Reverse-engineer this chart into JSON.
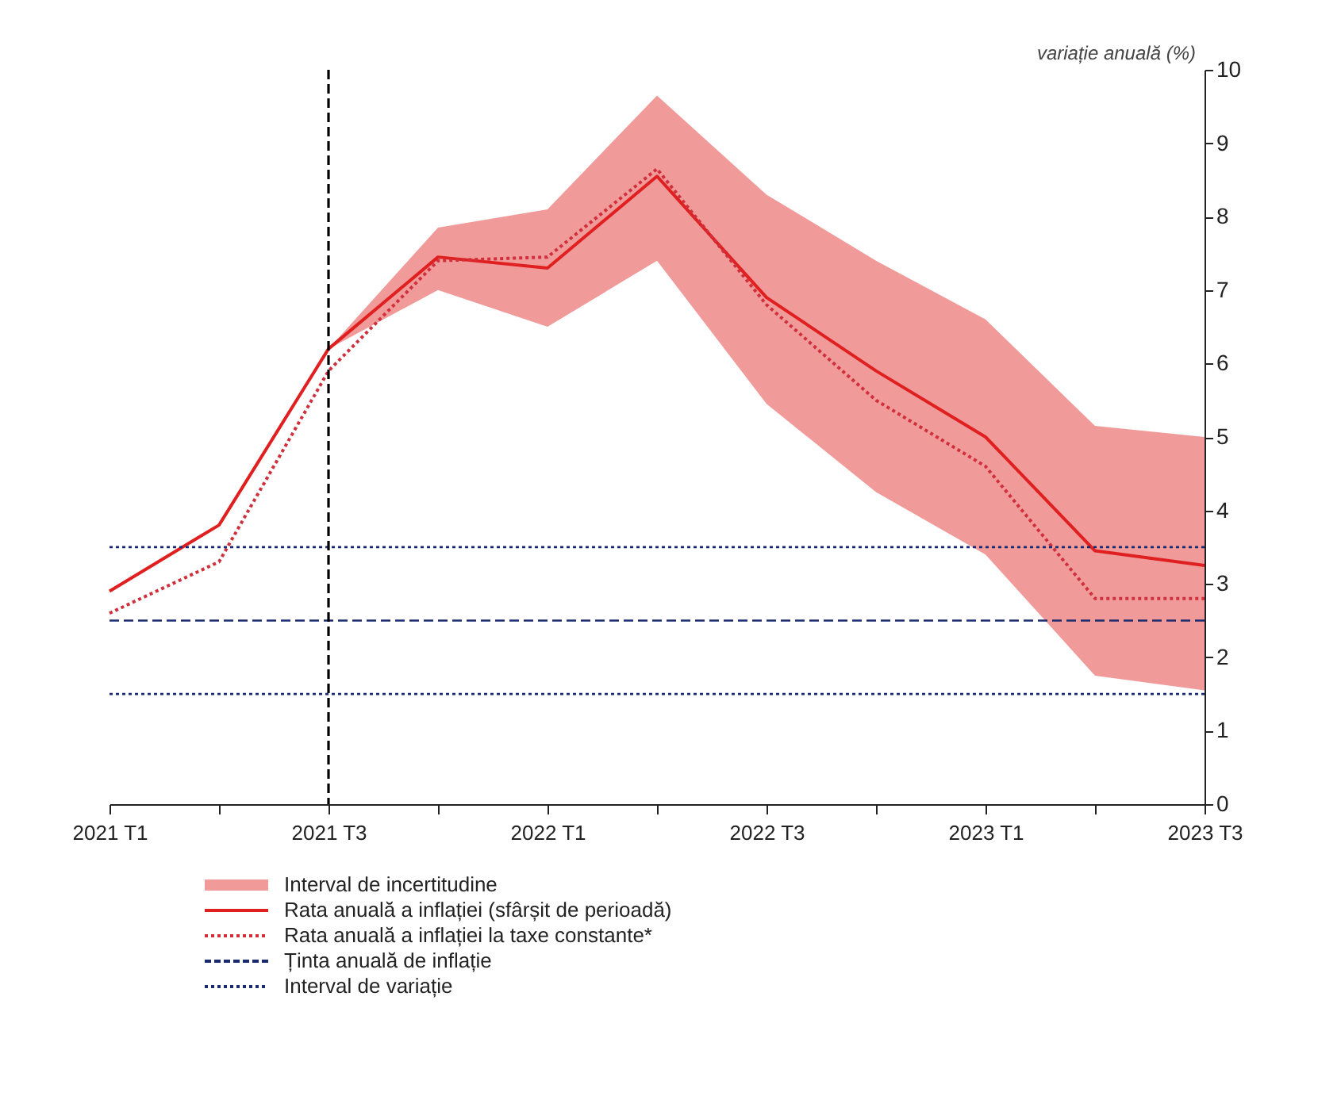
{
  "chart_data": {
    "type": "line",
    "ylabel": "variație anuală (%)",
    "categories": [
      "2021 T1",
      null,
      "2021 T3",
      null,
      "2022 T1",
      null,
      "2022 T3",
      null,
      "2023 T1",
      null,
      "2023 T3"
    ],
    "series": [
      {
        "name": "Rata anuală a inflației (sfârșit de perioadă)",
        "color": "#e02020",
        "line_style": "solid",
        "values": [
          2.9,
          3.8,
          6.2,
          7.45,
          7.3,
          8.55,
          6.9,
          5.9,
          5.0,
          3.45,
          3.25
        ],
        "lower": [
          null,
          null,
          6.2,
          7.0,
          6.5,
          7.4,
          5.45,
          4.25,
          3.4,
          1.75,
          1.55
        ],
        "upper": [
          null,
          null,
          6.2,
          7.85,
          8.1,
          9.65,
          8.3,
          7.4,
          6.6,
          5.15,
          5.0
        ]
      },
      {
        "name": "Rata anuală a inflației la taxe constante*",
        "color": "#d0303c",
        "line_style": "dotted",
        "values": [
          2.6,
          3.3,
          5.9,
          7.4,
          7.45,
          8.65,
          6.8,
          5.5,
          4.6,
          2.8,
          2.8
        ]
      }
    ],
    "annotations": [
      "Interval de incertitudine"
    ],
    "ref_lines": [
      {
        "axis": "y",
        "value": 2.5,
        "label": "Ținta anuală de inflație",
        "color": "#1a2a6c",
        "line_style": "dashed"
      },
      {
        "axis": "y",
        "value": 3.5,
        "label": "Interval de variație",
        "color": "#1a2a6c",
        "line_style": "dotted"
      },
      {
        "axis": "y",
        "value": 1.5,
        "color": "#1a2a6c",
        "line_style": "dotted"
      },
      {
        "axis": "x",
        "value": "2021 T3",
        "color": "#000000",
        "line_style": "dashed"
      }
    ],
    "ylim": [
      0,
      10
    ],
    "yticks": [
      0,
      1,
      2,
      3,
      4,
      5,
      6,
      7,
      8,
      9,
      10
    ],
    "grid": false,
    "legend": "bottom",
    "marker": "none"
  }
}
